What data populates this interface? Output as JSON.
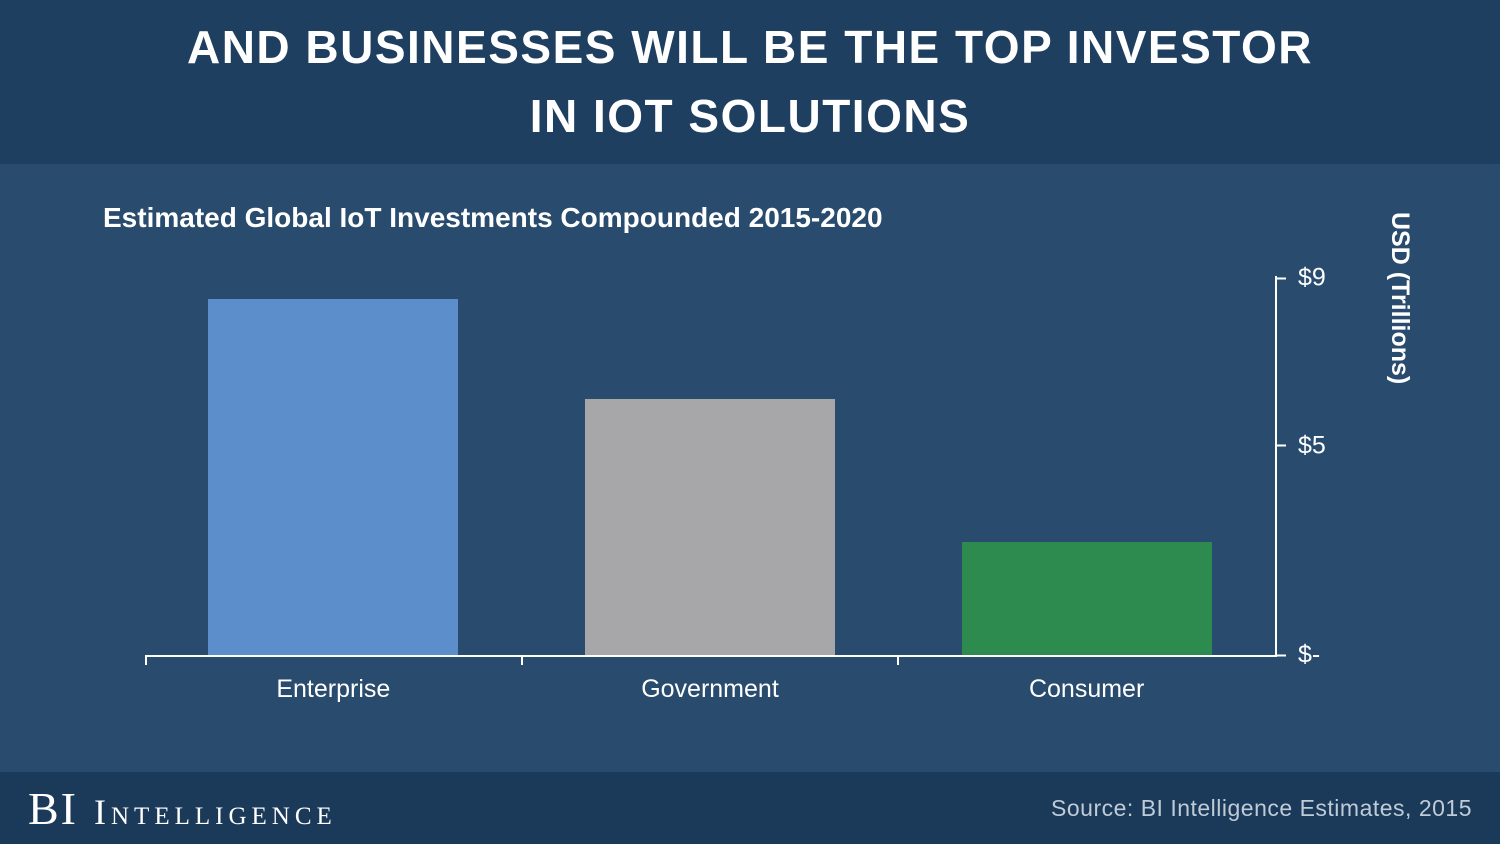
{
  "header": {
    "title": "AND BUSINESSES WILL BE THE TOP INVESTOR\nIN IOT SOLUTIONS"
  },
  "chart": {
    "subtitle": "Estimated Global IoT Investments Compounded 2015-2020",
    "axis_title": "USD (Trillions)",
    "yticks": [
      {
        "label": "$9",
        "value": 9
      },
      {
        "label": "$5",
        "value": 5
      },
      {
        "label": "$-",
        "value": 0
      }
    ]
  },
  "chart_data": {
    "type": "bar",
    "title": "Estimated Global IoT Investments Compounded 2015-2020",
    "categories": [
      "Enterprise",
      "Government",
      "Consumer"
    ],
    "values": [
      8.5,
      6.1,
      2.7
    ],
    "colors": [
      "#5b8ecb",
      "#a7a7a9",
      "#2e8b4f"
    ],
    "xlabel": "",
    "ylabel": "USD (Trillions)",
    "ylim": [
      0,
      9
    ],
    "ytick_labels": [
      "$-",
      "$5",
      "$9"
    ],
    "legend_position": "none",
    "grid": false
  },
  "footer": {
    "logo_primary": "BI",
    "logo_secondary": "Intelligence",
    "source": "Source: BI Intelligence Estimates, 2015"
  },
  "colors": {
    "header_bg": "#1e3f60",
    "body_bg": "#284b6e",
    "footer_bg": "#1b3a59",
    "text": "#ffffff",
    "source_text": "#bfcbd7"
  }
}
